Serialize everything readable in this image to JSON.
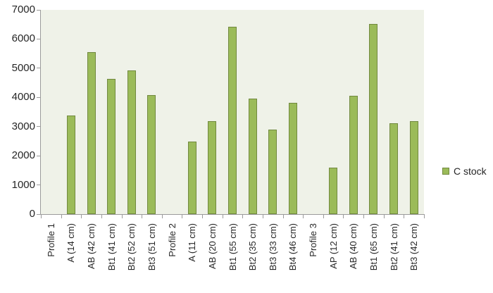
{
  "chart_data": {
    "type": "bar",
    "title": "",
    "legend_label": "C stock",
    "legend_position": "right",
    "grid": false,
    "categories": [
      "Profile 1",
      "A (14 cm)",
      "AB (42 cm)",
      "Bt1 (41 cm)",
      "Bt2 (52 cm)",
      "Bt3 (51 cm)",
      "Profile 2",
      "A (11 cm)",
      "AB (20 cm)",
      "Bt1 (55 cm)",
      "Bt2 (35 cm)",
      "Bt3 (33 cm)",
      "Bt4 (46 cm)",
      "Profile 3",
      "AP (12 cm)",
      "AB (40 cm)",
      "Bt1 (65 cm)",
      "Bt2 (41 cm)",
      "Bt3 (42 cm)"
    ],
    "values": [
      0,
      3380,
      5550,
      4630,
      4920,
      4070,
      0,
      2490,
      3190,
      6430,
      3950,
      2900,
      3820,
      0,
      1600,
      4050,
      6510,
      3110,
      3190
    ],
    "xlabel": "",
    "ylabel": "",
    "ylim": [
      0,
      7000
    ],
    "ytick_step": 1000,
    "yticks": [
      0,
      1000,
      2000,
      3000,
      4000,
      5000,
      6000,
      7000
    ],
    "colors": {
      "bar_fill": "#9BBB59",
      "bar_border": "#71893F",
      "plot_bg": "#EFF2E8",
      "axis": "#9B9B9B",
      "text": "#262626",
      "background": "#FFFFFF"
    }
  }
}
